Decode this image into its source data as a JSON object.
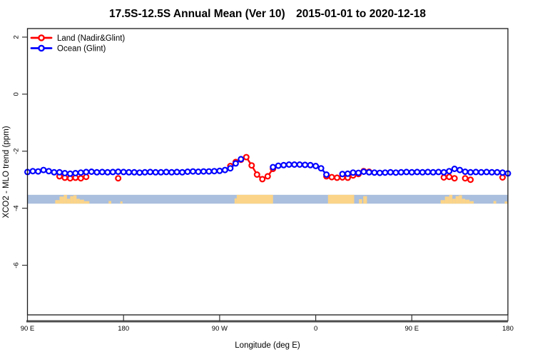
{
  "header": {
    "title": "17.5S-12.5S Annual Mean (Ver 10) 2015-01-01 to 2020-12-18"
  },
  "legend": {
    "items": [
      {
        "label": "Land (Nadir&Glint)",
        "color": "#ff0000"
      },
      {
        "label": "Ocean (Glint)",
        "color": "#0000ff"
      }
    ]
  },
  "chart_data": {
    "type": "line",
    "title": "17.5S-12.5S Annual Mean (Ver 10)  2015-01-01 to 2020-12-18",
    "xlabel": "Longitude (deg E)",
    "ylabel": "XCO2 - MLO trend (ppm)",
    "xlim": [
      90,
      540
    ],
    "ylim": [
      -7.74,
      2.3
    ],
    "x_step": 5,
    "grid": false,
    "legend_position": "top-left",
    "axes": {
      "x": {
        "label": "Longitude (deg E)",
        "ticks": [
          {
            "value": 90,
            "label": "90 E"
          },
          {
            "value": 180,
            "label": "180"
          },
          {
            "value": 270,
            "label": "90 W"
          },
          {
            "value": 360,
            "label": "0"
          },
          {
            "value": 450,
            "label": "90 E"
          },
          {
            "value": 540,
            "label": "180"
          }
        ]
      },
      "y": {
        "label": "XCO2 - MLO trend (ppm)",
        "ticks": [
          {
            "value": 2,
            "label": "2"
          },
          {
            "value": 0,
            "label": "0"
          },
          {
            "value": -2,
            "label": "-2"
          },
          {
            "value": -4,
            "label": "-4"
          },
          {
            "value": -6,
            "label": "-6"
          }
        ]
      }
    },
    "series": [
      {
        "name": "Land (Nadir&Glint)",
        "color": "#ff0000",
        "points": [
          [
            120,
            -2.88
          ],
          [
            125,
            -2.93
          ],
          [
            130,
            -2.95
          ],
          [
            135,
            -2.93
          ],
          [
            140,
            -2.95
          ],
          [
            145,
            -2.9
          ],
          [
            175,
            -2.95
          ],
          [
            280,
            -2.52
          ],
          [
            285,
            -2.38
          ],
          [
            290,
            -2.3
          ],
          [
            295,
            -2.21
          ],
          [
            300,
            -2.5
          ],
          [
            305,
            -2.82
          ],
          [
            310,
            -2.98
          ],
          [
            315,
            -2.88
          ],
          [
            320,
            -2.62
          ],
          [
            370,
            -2.88
          ],
          [
            375,
            -2.91
          ],
          [
            380,
            -2.93
          ],
          [
            385,
            -2.92
          ],
          [
            390,
            -2.93
          ],
          [
            395,
            -2.85
          ],
          [
            400,
            -2.8
          ],
          [
            405,
            -2.7
          ],
          [
            410,
            -2.72
          ],
          [
            480,
            -2.92
          ],
          [
            485,
            -2.9
          ],
          [
            490,
            -2.95
          ],
          [
            500,
            -2.95
          ],
          [
            505,
            -3.0
          ],
          [
            535,
            -2.92
          ]
        ]
      },
      {
        "name": "Ocean (Glint)",
        "color": "#0000ff",
        "points": [
          [
            90,
            -2.73
          ],
          [
            95,
            -2.7
          ],
          [
            100,
            -2.71
          ],
          [
            105,
            -2.66
          ],
          [
            110,
            -2.7
          ],
          [
            115,
            -2.74
          ],
          [
            120,
            -2.74
          ],
          [
            125,
            -2.77
          ],
          [
            130,
            -2.79
          ],
          [
            135,
            -2.77
          ],
          [
            140,
            -2.75
          ],
          [
            145,
            -2.73
          ],
          [
            150,
            -2.72
          ],
          [
            155,
            -2.74
          ],
          [
            160,
            -2.73
          ],
          [
            165,
            -2.74
          ],
          [
            170,
            -2.73
          ],
          [
            175,
            -2.72
          ],
          [
            180,
            -2.73
          ],
          [
            185,
            -2.74
          ],
          [
            190,
            -2.74
          ],
          [
            195,
            -2.75
          ],
          [
            200,
            -2.74
          ],
          [
            205,
            -2.73
          ],
          [
            210,
            -2.74
          ],
          [
            215,
            -2.74
          ],
          [
            220,
            -2.73
          ],
          [
            225,
            -2.74
          ],
          [
            230,
            -2.73
          ],
          [
            235,
            -2.74
          ],
          [
            240,
            -2.72
          ],
          [
            245,
            -2.71
          ],
          [
            250,
            -2.72
          ],
          [
            255,
            -2.71
          ],
          [
            260,
            -2.71
          ],
          [
            265,
            -2.7
          ],
          [
            270,
            -2.69
          ],
          [
            275,
            -2.66
          ],
          [
            280,
            -2.6
          ],
          [
            285,
            -2.43
          ],
          [
            290,
            -2.28
          ],
          [
            320,
            -2.56
          ],
          [
            325,
            -2.51
          ],
          [
            330,
            -2.49
          ],
          [
            335,
            -2.47
          ],
          [
            340,
            -2.47
          ],
          [
            345,
            -2.47
          ],
          [
            350,
            -2.48
          ],
          [
            355,
            -2.49
          ],
          [
            360,
            -2.52
          ],
          [
            365,
            -2.6
          ],
          [
            370,
            -2.82
          ],
          [
            385,
            -2.8
          ],
          [
            390,
            -2.79
          ],
          [
            395,
            -2.75
          ],
          [
            400,
            -2.76
          ],
          [
            405,
            -2.72
          ],
          [
            410,
            -2.74
          ],
          [
            415,
            -2.75
          ],
          [
            420,
            -2.76
          ],
          [
            425,
            -2.75
          ],
          [
            430,
            -2.74
          ],
          [
            435,
            -2.75
          ],
          [
            440,
            -2.74
          ],
          [
            445,
            -2.73
          ],
          [
            450,
            -2.74
          ],
          [
            455,
            -2.73
          ],
          [
            460,
            -2.74
          ],
          [
            465,
            -2.73
          ],
          [
            470,
            -2.74
          ],
          [
            475,
            -2.73
          ],
          [
            480,
            -2.74
          ],
          [
            485,
            -2.7
          ],
          [
            490,
            -2.62
          ],
          [
            495,
            -2.66
          ],
          [
            500,
            -2.72
          ],
          [
            505,
            -2.74
          ],
          [
            510,
            -2.73
          ],
          [
            515,
            -2.74
          ],
          [
            520,
            -2.73
          ],
          [
            525,
            -2.74
          ],
          [
            530,
            -2.74
          ],
          [
            535,
            -2.75
          ],
          [
            540,
            -2.78
          ]
        ]
      }
    ],
    "land_ocean_strip": {
      "v_top": -3.53,
      "v_bottom": -3.84,
      "ocean_color": "#aabfdd",
      "land_color": "#fbd489",
      "land_segments": [
        {
          "from": 116,
          "to": 120,
          "h": 0.4
        },
        {
          "from": 120,
          "to": 124,
          "h": 0.8
        },
        {
          "from": 124,
          "to": 127,
          "h": 1.0
        },
        {
          "from": 127,
          "to": 130,
          "h": 0.55
        },
        {
          "from": 130,
          "to": 133,
          "h": 0.85
        },
        {
          "from": 133,
          "to": 136,
          "h": 0.95
        },
        {
          "from": 136,
          "to": 139,
          "h": 0.55
        },
        {
          "from": 139,
          "to": 143,
          "h": 0.45
        },
        {
          "from": 143,
          "to": 148,
          "h": 0.28
        },
        {
          "from": 166,
          "to": 168.5,
          "h": 0.3
        },
        {
          "from": 177,
          "to": 179,
          "h": 0.25
        },
        {
          "from": 284,
          "to": 286,
          "h": 0.6
        },
        {
          "from": 286,
          "to": 320,
          "h": 1.0
        },
        {
          "from": 371.5,
          "to": 396,
          "h": 1.0
        },
        {
          "from": 400.5,
          "to": 403.5,
          "h": 0.5
        },
        {
          "from": 404.5,
          "to": 408,
          "h": 0.85
        },
        {
          "from": 477,
          "to": 481,
          "h": 0.4
        },
        {
          "from": 481,
          "to": 485,
          "h": 0.8
        },
        {
          "from": 485,
          "to": 488,
          "h": 1.0
        },
        {
          "from": 488,
          "to": 491,
          "h": 0.55
        },
        {
          "from": 491,
          "to": 494,
          "h": 0.85
        },
        {
          "from": 494,
          "to": 497,
          "h": 0.95
        },
        {
          "from": 497,
          "to": 500,
          "h": 0.55
        },
        {
          "from": 500,
          "to": 504,
          "h": 0.45
        },
        {
          "from": 504,
          "to": 508,
          "h": 0.28
        },
        {
          "from": 526.5,
          "to": 529,
          "h": 0.3
        },
        {
          "from": 537,
          "to": 539.5,
          "h": 0.25
        }
      ]
    }
  }
}
